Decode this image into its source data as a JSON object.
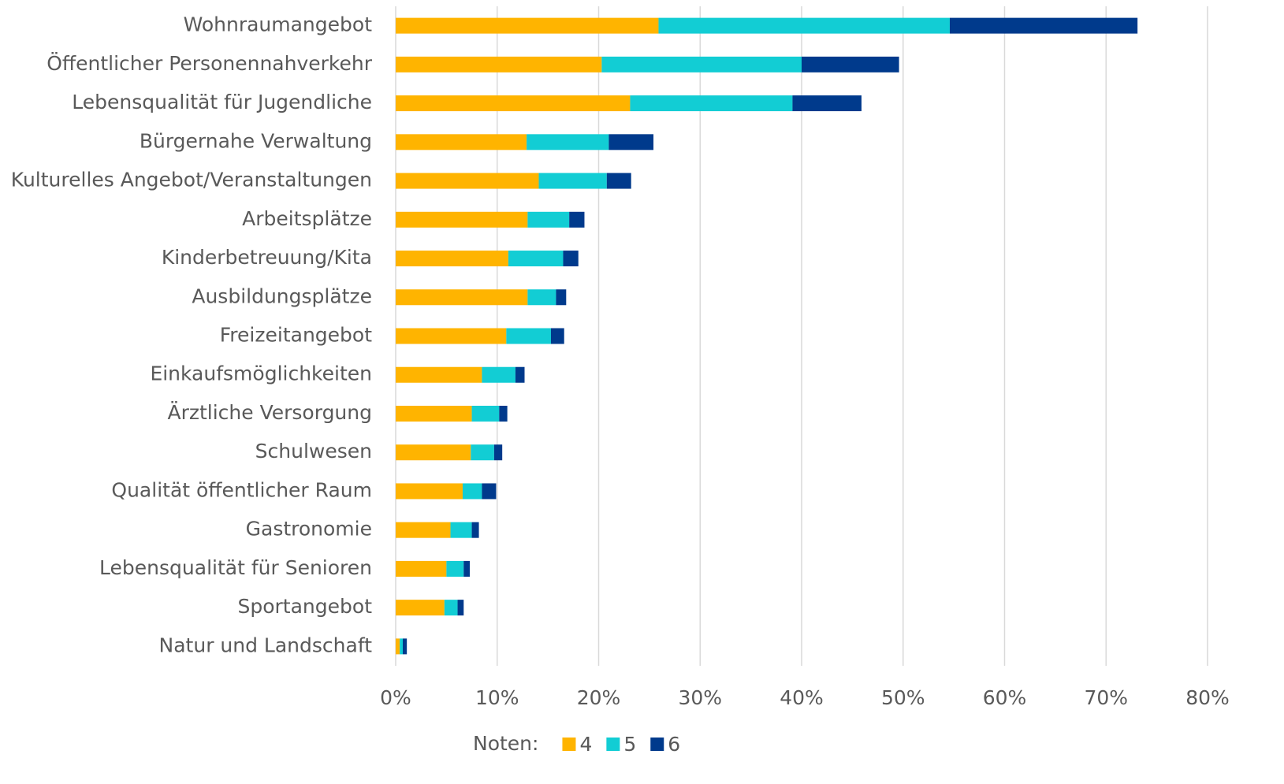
{
  "chart_data": {
    "type": "stacked_barh",
    "categories": [
      "Wohnraumangebot",
      "Öffentlicher Personennahverkehr",
      "Lebensqualität für Jugendliche",
      "Bürgernahe Verwaltung",
      "Kulturelles Angebot/Veranstaltungen",
      "Arbeitsplätze",
      "Kinderbetreuung/Kita",
      "Ausbildungsplätze",
      "Freizeitangebot",
      "Einkaufsmöglichkeiten",
      "Ärztliche Versorgung",
      "Schulwesen",
      "Qualität öffentlicher Raum",
      "Gastronomie",
      "Lebensqualität für Senioren",
      "Sportangebot",
      "Natur und Landschaft"
    ],
    "series": [
      {
        "name": "4",
        "color": "#ffb400",
        "values": [
          25.9,
          20.3,
          23.1,
          12.9,
          14.1,
          13.0,
          11.1,
          13.0,
          10.9,
          8.5,
          7.5,
          7.4,
          6.6,
          5.4,
          5.0,
          4.8,
          0.4
        ]
      },
      {
        "name": "5",
        "color": "#12cdd4",
        "values": [
          28.7,
          19.7,
          16.0,
          8.1,
          6.7,
          4.1,
          5.4,
          2.8,
          4.4,
          3.3,
          2.7,
          2.3,
          1.9,
          2.1,
          1.7,
          1.3,
          0.3
        ]
      },
      {
        "name": "6",
        "color": "#003a8c",
        "values": [
          18.5,
          9.6,
          6.8,
          4.4,
          2.4,
          1.5,
          1.5,
          1.0,
          1.3,
          0.9,
          0.8,
          0.8,
          1.4,
          0.7,
          0.6,
          0.6,
          0.4
        ]
      }
    ],
    "legend_title": "Noten:",
    "xlim": [
      0,
      80
    ],
    "xticks": [
      {
        "value": 0,
        "label": "0%"
      },
      {
        "value": 10,
        "label": "10%"
      },
      {
        "value": 20,
        "label": "20%"
      },
      {
        "value": 30,
        "label": "30%"
      },
      {
        "value": 40,
        "label": "40%"
      },
      {
        "value": 50,
        "label": "50%"
      },
      {
        "value": 60,
        "label": "60%"
      },
      {
        "value": 70,
        "label": "70%"
      },
      {
        "value": 80,
        "label": "80%"
      }
    ],
    "grid": true,
    "legend": "bottom"
  }
}
